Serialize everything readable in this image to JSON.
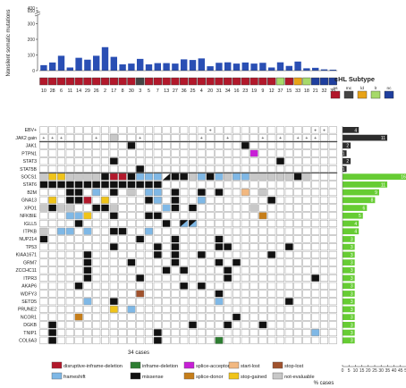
{
  "chart_data": {
    "type": "heatmap",
    "ylabel": "Nonsilent somatic mutations",
    "y_ticks": [
      0,
      100,
      200,
      300,
      400,
      650
    ],
    "x_label": "34 cases",
    "percent_label": "% cases",
    "percent_ticks": [
      "0",
      "5",
      "10",
      "15",
      "20",
      "25",
      "30",
      "35",
      "40",
      "45",
      "50"
    ],
    "case_ids": [
      "10",
      "28",
      "6",
      "11",
      "14",
      "29",
      "26",
      "2",
      "17",
      "8",
      "30",
      "3",
      "5",
      "7",
      "13",
      "27",
      "36",
      "25",
      "4",
      "20",
      "31",
      "34",
      "16",
      "23",
      "19",
      "9",
      "12",
      "37",
      "15",
      "33",
      "18",
      "21",
      "32",
      "35"
    ],
    "mutation_counts": [
      35,
      52,
      95,
      20,
      82,
      70,
      95,
      150,
      88,
      40,
      45,
      75,
      40,
      48,
      48,
      45,
      72,
      68,
      78,
      28,
      50,
      53,
      45,
      52,
      45,
      50,
      20,
      53,
      30,
      58,
      15,
      18,
      8,
      6
    ],
    "subtype_codes": [
      "ns",
      "ns",
      "ns",
      "ns",
      "ns",
      "ns",
      "ns",
      "ns",
      "ns",
      "ns",
      "ns",
      "mc",
      "ns",
      "ns",
      "ns",
      "ns",
      "ns",
      "ns",
      "ns",
      "ns",
      "ns",
      "ns",
      "ns",
      "ns",
      "ns",
      "ns",
      "ns",
      "lr",
      "ns",
      "ld",
      "lr",
      "nc",
      "nc",
      "nc"
    ],
    "genes": [
      "EBV+",
      "JAK2 gain",
      "JAK1",
      "PTPN1",
      "STAT3",
      "STAT5B",
      "SOCS1",
      "STAT6",
      "B2M",
      "GNA13",
      "XPO1",
      "NFKBIE",
      "IGLL5",
      "ITPKB",
      "NUP214",
      "TP53",
      "KIAA1671",
      "GRM7",
      "ZCCHC11",
      "ITPR3",
      "AKAP6",
      "WDFY3",
      "SETD5",
      "PRUNE2",
      "NCOR1",
      "DGKB",
      "TNIP1",
      "COL6A3"
    ],
    "gene_values": [
      4,
      11,
      2,
      1,
      2,
      1,
      16,
      11,
      9,
      8,
      6,
      5,
      4,
      4,
      3,
      3,
      3,
      3,
      3,
      3,
      3,
      3,
      3,
      3,
      3,
      3,
      3,
      3
    ],
    "subtype_legend": {
      "title": "cHL Subtype",
      "items": [
        {
          "code": "ns",
          "color": "#b2182b"
        },
        {
          "code": "mc",
          "color": "#444444"
        },
        {
          "code": "ld",
          "color": "#e8a317"
        },
        {
          "code": "lr",
          "color": "#a6d96a"
        },
        {
          "code": "nc",
          "color": "#1f3f9e"
        }
      ]
    },
    "mutation_legend": [
      {
        "key": "d",
        "label": "disruptive-inframe-deletion",
        "color": "#b2182b"
      },
      {
        "key": "i",
        "label": "inframe-deletion",
        "color": "#2e7d32"
      },
      {
        "key": "a",
        "label": "splice-acceptor",
        "color": "#c71fd6"
      },
      {
        "key": "s",
        "label": "start-lost",
        "color": "#f2b880"
      },
      {
        "key": "p",
        "label": "stop-lost",
        "color": "#a0522d"
      },
      {
        "key": "f",
        "label": "frameshift",
        "color": "#7fb8e6"
      },
      {
        "key": "m",
        "label": "missense",
        "color": "#111111"
      },
      {
        "key": "o",
        "label": "splice-donor",
        "color": "#c67e1a"
      },
      {
        "key": "g",
        "label": "stop-gained",
        "color": "#f0c419"
      },
      {
        "key": "n",
        "label": "not-evaluable",
        "color": "#c8c8c8"
      }
    ],
    "plus_rows": {
      "0": [
        19,
        31,
        32
      ],
      "1": [
        0,
        1,
        2,
        6,
        11,
        18,
        21,
        25,
        27,
        29,
        30,
        31
      ]
    },
    "matrix": [
      "..................................",
      "........n.........................",
      "..........m............m..........",
      "........................a.........",
      "........m..................m......",
      "...........m......................",
      "nggnnnnmddmfffxmmnfmfnffnnnnnmn...",
      "mmmmmmmmmmmmmm....................",
      "...mm.f.m.n.ff.m..m.m..s.n........",
      ".g.mmd.g....mf.m..f.......m.......",
      "nmnn..mmn.....fm.m......n.........",
      "...ffg..m...mm...........o........",
      "....m.........m.yy................",
      "n.ff.f..mm..f.....................",
      "m..........m...m....m.............",
      "........m....m.m....mm......m.....",
      ".....m.......m.m..m.......m.......",
      ".....m....m....m....m.m...........",
      ".....m........m.m....m............",
      ".....m.....m.........m.........m..",
      "....m...........m.m...............",
      "...........p........m.............",
      ".....f..m...........f.......m.....",
      "........g.f.......................",
      "....o.................m...........",
      ".m...............m...m...m........",
      ".m...........m.................f..",
      ".m...........m......i............."
    ]
  }
}
